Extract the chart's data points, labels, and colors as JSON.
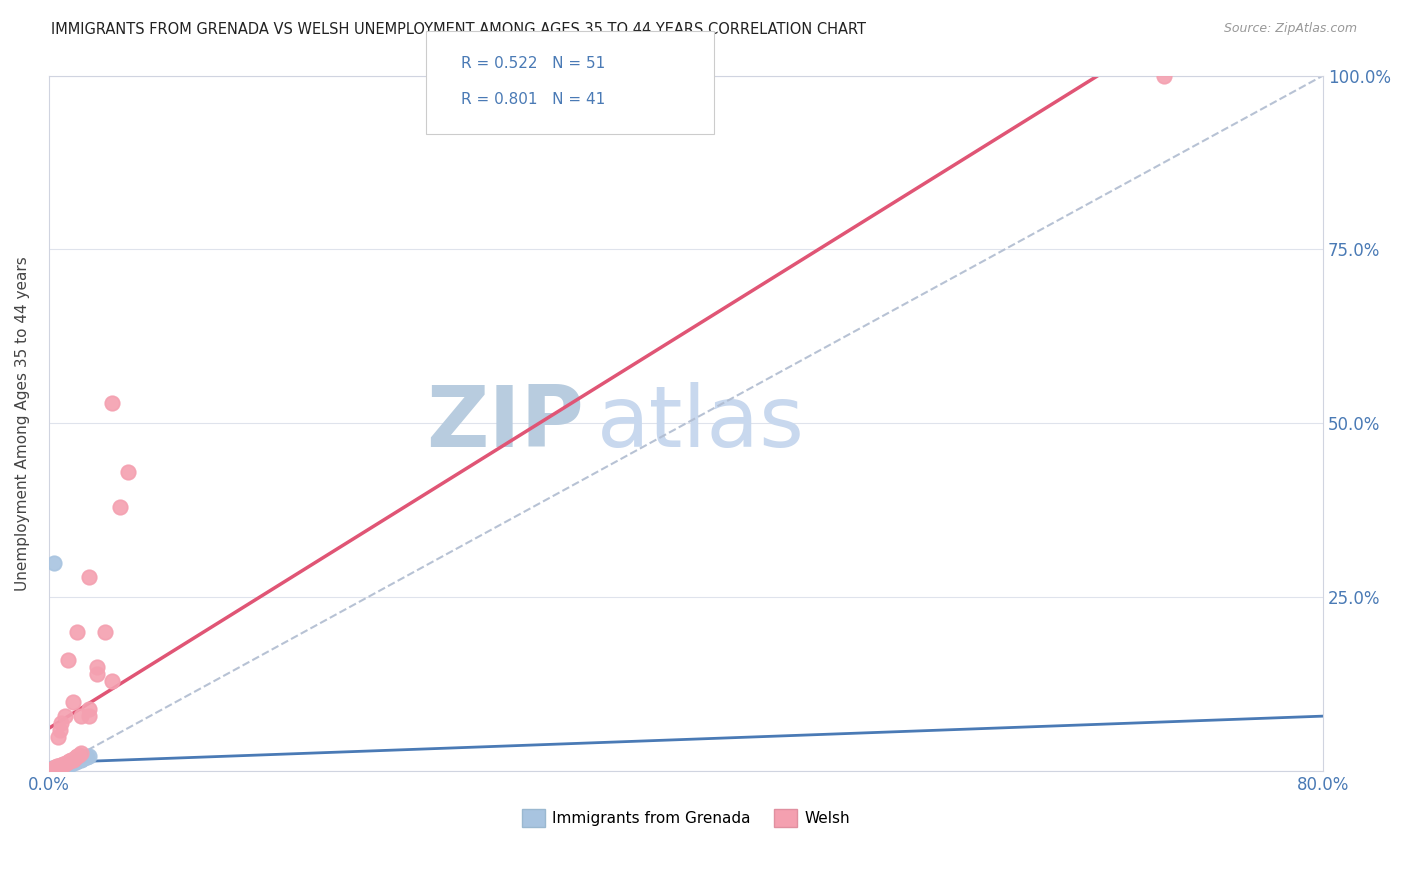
{
  "title": "IMMIGRANTS FROM GRENADA VS WELSH UNEMPLOYMENT AMONG AGES 35 TO 44 YEARS CORRELATION CHART",
  "source": "Source: ZipAtlas.com",
  "ylabel": "Unemployment Among Ages 35 to 44 years",
  "xlim": [
    0.0,
    0.8
  ],
  "ylim": [
    0.0,
    1.0
  ],
  "R_grenada": 0.522,
  "N_grenada": 51,
  "R_welsh": 0.801,
  "N_welsh": 41,
  "grenada_color": "#a8c4e0",
  "welsh_color": "#f4a0b0",
  "grenada_line_color": "#4a7ab5",
  "welsh_line_color": "#e05575",
  "watermark_zip": "ZIP",
  "watermark_atlas": "atlas",
  "watermark_color_zip": "#c8d8ee",
  "watermark_color_atlas": "#c8d8ee",
  "background_color": "#ffffff",
  "grenada_x": [
    0.001,
    0.001,
    0.002,
    0.002,
    0.002,
    0.002,
    0.002,
    0.003,
    0.003,
    0.003,
    0.003,
    0.003,
    0.004,
    0.004,
    0.004,
    0.004,
    0.005,
    0.005,
    0.005,
    0.005,
    0.005,
    0.006,
    0.006,
    0.006,
    0.006,
    0.007,
    0.007,
    0.007,
    0.008,
    0.008,
    0.008,
    0.009,
    0.009,
    0.01,
    0.01,
    0.011,
    0.012,
    0.013,
    0.014,
    0.015,
    0.016,
    0.017,
    0.018,
    0.019,
    0.02,
    0.021,
    0.022,
    0.023,
    0.024,
    0.025,
    0.003
  ],
  "grenada_y": [
    0.001,
    0.002,
    0.001,
    0.002,
    0.003,
    0.004,
    0.005,
    0.001,
    0.002,
    0.003,
    0.004,
    0.005,
    0.002,
    0.003,
    0.004,
    0.005,
    0.002,
    0.003,
    0.004,
    0.005,
    0.006,
    0.003,
    0.004,
    0.005,
    0.006,
    0.004,
    0.005,
    0.006,
    0.005,
    0.006,
    0.007,
    0.006,
    0.007,
    0.007,
    0.008,
    0.008,
    0.009,
    0.01,
    0.011,
    0.012,
    0.013,
    0.014,
    0.015,
    0.016,
    0.017,
    0.018,
    0.019,
    0.02,
    0.021,
    0.022,
    0.3
  ],
  "welsh_x": [
    0.002,
    0.003,
    0.004,
    0.005,
    0.006,
    0.007,
    0.008,
    0.009,
    0.01,
    0.011,
    0.012,
    0.013,
    0.014,
    0.015,
    0.016,
    0.017,
    0.018,
    0.019,
    0.02,
    0.025,
    0.03,
    0.035,
    0.04,
    0.045,
    0.05,
    0.003,
    0.004,
    0.005,
    0.006,
    0.007,
    0.008,
    0.01,
    0.012,
    0.015,
    0.018,
    0.02,
    0.025,
    0.03,
    0.7,
    0.025,
    0.04
  ],
  "welsh_y": [
    0.003,
    0.004,
    0.005,
    0.006,
    0.007,
    0.008,
    0.009,
    0.01,
    0.011,
    0.012,
    0.013,
    0.015,
    0.016,
    0.017,
    0.018,
    0.02,
    0.022,
    0.024,
    0.026,
    0.09,
    0.15,
    0.2,
    0.13,
    0.38,
    0.43,
    0.005,
    0.006,
    0.007,
    0.05,
    0.06,
    0.07,
    0.08,
    0.16,
    0.1,
    0.2,
    0.08,
    0.08,
    0.14,
    1.0,
    0.28,
    0.53
  ]
}
